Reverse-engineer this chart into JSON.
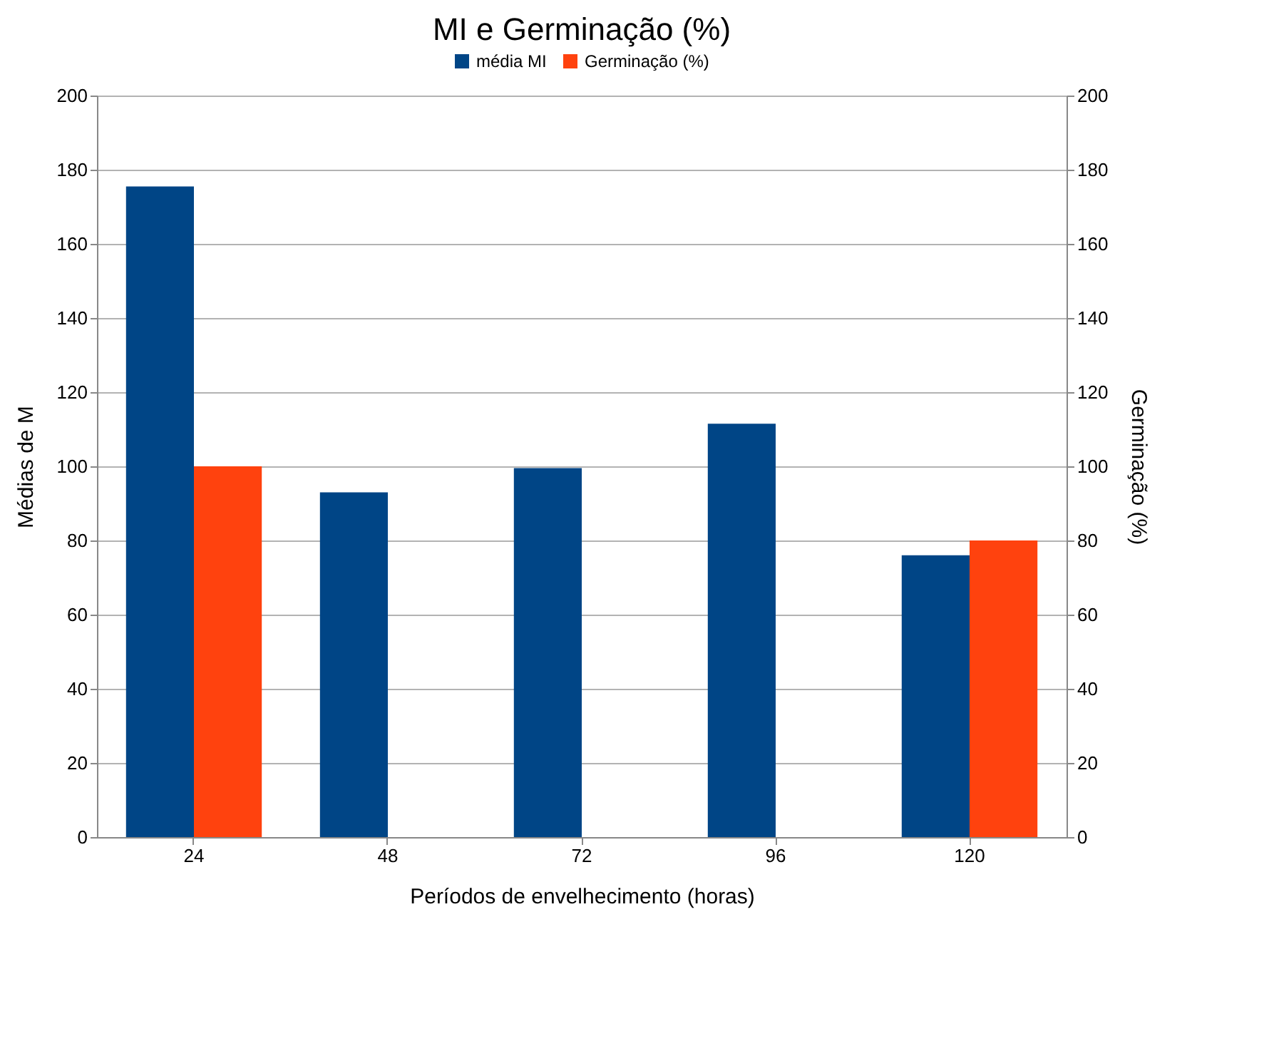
{
  "chart_data": {
    "type": "bar",
    "title": "MI e Germinação (%)",
    "xlabel": "Períodos de envelhecimento (horas)",
    "ylabel": "Médias de M",
    "y2label": "Germinação (%)",
    "categories": [
      "24",
      "48",
      "72",
      "96",
      "120"
    ],
    "series": [
      {
        "name": "média MI",
        "color": "#004586",
        "values": [
          175.5,
          93,
          99.5,
          111.5,
          76
        ]
      },
      {
        "name": "Germinação (%)",
        "color": "#ff420e",
        "axis": "y2",
        "values": [
          100,
          null,
          null,
          null,
          80
        ]
      }
    ],
    "ylim": [
      0,
      200
    ],
    "yticks": [
      0,
      20,
      40,
      60,
      80,
      100,
      120,
      140,
      160,
      180,
      200
    ],
    "y2lim": [
      0,
      200
    ],
    "y2ticks": [
      0,
      20,
      40,
      60,
      80,
      100,
      120,
      140,
      160,
      180,
      200
    ],
    "grid": "y",
    "legend": "top"
  }
}
